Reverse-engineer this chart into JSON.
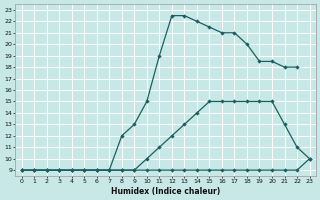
{
  "xlabel": "Humidex (Indice chaleur)",
  "bg_color": "#c8e8e8",
  "grid_color": "#ffffff",
  "line_color": "#1a6060",
  "xlim": [
    -0.5,
    23.5
  ],
  "ylim": [
    8.5,
    23.5
  ],
  "xticks": [
    0,
    1,
    2,
    3,
    4,
    5,
    6,
    7,
    8,
    9,
    10,
    11,
    12,
    13,
    14,
    15,
    16,
    17,
    18,
    19,
    20,
    21,
    22,
    23
  ],
  "yticks": [
    9,
    10,
    11,
    12,
    13,
    14,
    15,
    16,
    17,
    18,
    19,
    20,
    21,
    22,
    23
  ],
  "curve1_x": [
    0,
    1,
    2,
    3,
    4,
    5,
    6,
    7,
    8,
    9,
    10,
    11,
    12,
    13,
    14,
    15,
    16,
    17,
    18,
    19,
    20,
    21,
    22,
    23
  ],
  "curve1_y": [
    9,
    9,
    9,
    9,
    9,
    9,
    9,
    9,
    9,
    9,
    9,
    9,
    9,
    9,
    9,
    9,
    9,
    9,
    9,
    9,
    9,
    9,
    9,
    10
  ],
  "curve2_x": [
    0,
    1,
    2,
    3,
    4,
    5,
    6,
    7,
    8,
    9,
    10,
    11,
    12,
    13,
    14,
    15,
    16,
    17,
    18,
    19,
    20,
    21,
    22,
    23
  ],
  "curve2_y": [
    9,
    9,
    9,
    9,
    9,
    9,
    9,
    9,
    9,
    9,
    10,
    11,
    12,
    13,
    14,
    15,
    15,
    15,
    15,
    15,
    15,
    13,
    11,
    10
  ],
  "curve3_x": [
    0,
    1,
    2,
    3,
    4,
    5,
    6,
    7,
    8,
    9,
    10,
    11,
    12,
    13,
    14,
    15,
    16,
    17,
    18,
    19,
    20,
    21,
    22
  ],
  "curve3_y": [
    9,
    9,
    9,
    9,
    9,
    9,
    9,
    9,
    12,
    13,
    15,
    19,
    22.5,
    22.5,
    22,
    21.5,
    21,
    21,
    20,
    18.5,
    18.5,
    18,
    18
  ]
}
